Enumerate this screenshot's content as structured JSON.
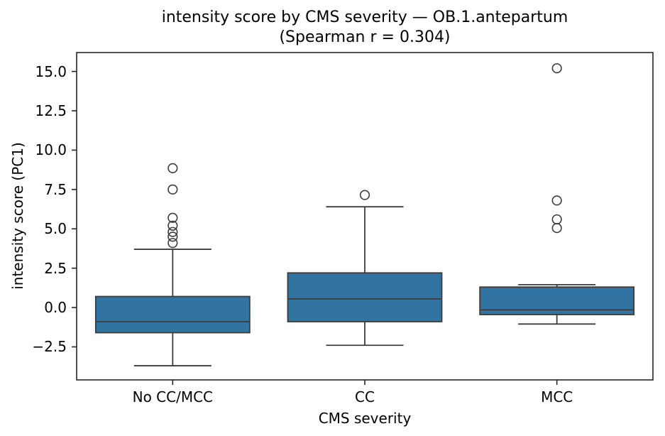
{
  "chart_data": {
    "type": "box",
    "title": "intensity score by CMS severity — OB.1.antepartum\n(Spearman r = 0.304)",
    "title_lines": [
      "intensity score by CMS severity — OB.1.antepartum",
      "(Spearman r = 0.304)"
    ],
    "xlabel": "CMS severity",
    "ylabel": "intensity score (PC1)",
    "categories": [
      "No CC/MCC",
      "CC",
      "MCC"
    ],
    "yticks": [
      -2.5,
      0.0,
      2.5,
      5.0,
      7.5,
      10.0,
      12.5,
      15.0
    ],
    "ylim": [
      -4.6,
      16.2
    ],
    "grid": false,
    "legend": false,
    "series": [
      {
        "category": "No CC/MCC",
        "whisker_low": -3.7,
        "q1": -1.6,
        "median": -0.9,
        "q3": 0.7,
        "whisker_high": 3.7,
        "outliers": [
          4.1,
          4.5,
          4.8,
          5.2,
          5.7,
          7.5,
          8.85
        ]
      },
      {
        "category": "CC",
        "whisker_low": -2.4,
        "q1": -0.9,
        "median": 0.55,
        "q3": 2.2,
        "whisker_high": 6.4,
        "outliers": [
          7.15
        ]
      },
      {
        "category": "MCC",
        "whisker_low": -1.05,
        "q1": -0.45,
        "median": -0.15,
        "q3": 1.3,
        "whisker_high": 1.45,
        "outliers": [
          5.05,
          5.6,
          6.8,
          15.2
        ]
      }
    ],
    "colors": {
      "box_fill": "#3274A1",
      "box_edge": "#3C3C3C",
      "spine": "#262626",
      "text": "#000000"
    }
  }
}
